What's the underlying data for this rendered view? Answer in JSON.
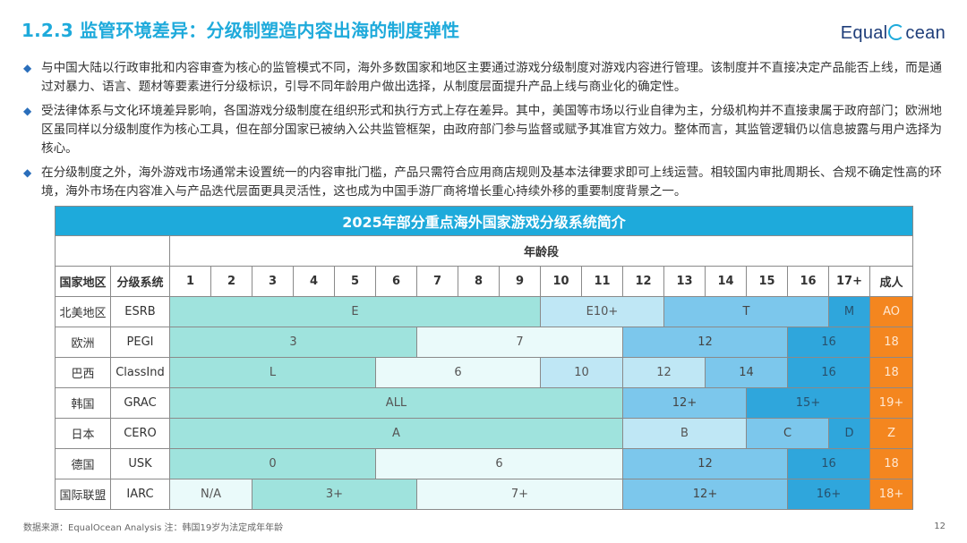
{
  "header": {
    "title": "1.2.3 监管环境差异：分级制塑造内容出海的制度弹性",
    "logo_pre": "Equal",
    "logo_post": "cean"
  },
  "bullets": [
    "与中国大陆以行政审批和内容审查为核心的监管模式不同，海外多数国家和地区主要通过游戏分级制度对游戏内容进行管理。该制度并不直接决定产品能否上线，而是通过对暴力、语言、题材等要素进行分级标识，引导不同年龄用户做出选择，从制度层面提升产品上线与商业化的确定性。",
    "受法律体系与文化环境差异影响，各国游戏分级制度在组织形式和执行方式上存在差异。其中，美国等市场以行业自律为主，分级机构并不直接隶属于政府部门；欧洲地区虽同样以分级制度作为核心工具，但在部分国家已被纳入公共监管框架，由政府部门参与监督或赋予其准官方效力。整体而言，其监管逻辑仍以信息披露与用户选择为核心。",
    "在分级制度之外，海外游戏市场通常未设置统一的内容审批门槛，产品只需符合应用商店规则及基本法律要求即可上线运营。相较国内审批周期长、合规不确定性高的环境，海外市场在内容准入与产品迭代层面更具灵活性，这也成为中国手游厂商将增长重心持续外移的重要制度背景之一。"
  ],
  "table": {
    "title": "2025年部分重点海外国家游戏分级系统简介",
    "age_group_label": "年龄段",
    "col_country": "国家地区",
    "col_system": "分级系统",
    "ages": [
      "1",
      "2",
      "3",
      "4",
      "5",
      "6",
      "7",
      "8",
      "9",
      "10",
      "11",
      "12",
      "13",
      "14",
      "15",
      "16",
      "17+",
      "成人"
    ],
    "rows": [
      {
        "country": "北美地区",
        "system": "ESRB",
        "segments": [
          {
            "label": "E",
            "span": 9,
            "color": "c1"
          },
          {
            "label": "E10+",
            "span": 3,
            "color": "c3"
          },
          {
            "label": "T",
            "span": 4,
            "color": "c4"
          },
          {
            "label": "M",
            "span": 1,
            "color": "c5"
          },
          {
            "label": "AO",
            "span": 1,
            "color": "co"
          }
        ]
      },
      {
        "country": "欧洲",
        "system": "PEGI",
        "segments": [
          {
            "label": "3",
            "span": 6,
            "color": "c1"
          },
          {
            "label": "7",
            "span": 5,
            "color": "c2"
          },
          {
            "label": "12",
            "span": 4,
            "color": "c4"
          },
          {
            "label": "16",
            "span": 2,
            "color": "c5"
          },
          {
            "label": "18",
            "span": 1,
            "color": "co"
          }
        ]
      },
      {
        "country": "巴西",
        "system": "ClassInd",
        "segments": [
          {
            "label": "L",
            "span": 5,
            "color": "c1"
          },
          {
            "label": "6",
            "span": 4,
            "color": "c2"
          },
          {
            "label": "10",
            "span": 2,
            "color": "c3"
          },
          {
            "label": "12",
            "span": 2,
            "color": "c3"
          },
          {
            "label": "14",
            "span": 2,
            "color": "c4"
          },
          {
            "label": "16",
            "span": 2,
            "color": "c5"
          },
          {
            "label": "18",
            "span": 1,
            "color": "co"
          }
        ]
      },
      {
        "country": "韩国",
        "system": "GRAC",
        "segments": [
          {
            "label": "ALL",
            "span": 11,
            "color": "c1"
          },
          {
            "label": "12+",
            "span": 3,
            "color": "c4"
          },
          {
            "label": "15+",
            "span": 3,
            "color": "c5"
          },
          {
            "label": "19+",
            "span": 1,
            "color": "co"
          }
        ]
      },
      {
        "country": "日本",
        "system": "CERO",
        "segments": [
          {
            "label": "A",
            "span": 11,
            "color": "c1"
          },
          {
            "label": "B",
            "span": 3,
            "color": "c3"
          },
          {
            "label": "C",
            "span": 2,
            "color": "c4"
          },
          {
            "label": "D",
            "span": 1,
            "color": "c5"
          },
          {
            "label": "Z",
            "span": 1,
            "color": "co"
          }
        ]
      },
      {
        "country": "德国",
        "system": "USK",
        "segments": [
          {
            "label": "0",
            "span": 5,
            "color": "c1"
          },
          {
            "label": "6",
            "span": 6,
            "color": "c2"
          },
          {
            "label": "12",
            "span": 4,
            "color": "c4"
          },
          {
            "label": "16",
            "span": 2,
            "color": "c5"
          },
          {
            "label": "18",
            "span": 1,
            "color": "co"
          }
        ]
      },
      {
        "country": "国际联盟",
        "system": "IARC",
        "segments": [
          {
            "label": "N/A",
            "span": 2,
            "color": "c2"
          },
          {
            "label": "3+",
            "span": 4,
            "color": "c1"
          },
          {
            "label": "7+",
            "span": 5,
            "color": "c2"
          },
          {
            "label": "12+",
            "span": 4,
            "color": "c4"
          },
          {
            "label": "16+",
            "span": 2,
            "color": "c5"
          },
          {
            "label": "18+",
            "span": 1,
            "color": "co"
          }
        ]
      }
    ]
  },
  "footer": {
    "source": "数据来源：EqualOcean Analysis 注：韩国19岁为法定成年年龄",
    "page": "12"
  },
  "colors": {
    "title": "#1eaadb",
    "teal": "#9fe3dd",
    "pale": "#eafafa",
    "light_blue": "#bfe7f5",
    "mid_blue": "#7cc7ec",
    "deep_blue": "#2fa6dc",
    "orange": "#f4861f"
  }
}
